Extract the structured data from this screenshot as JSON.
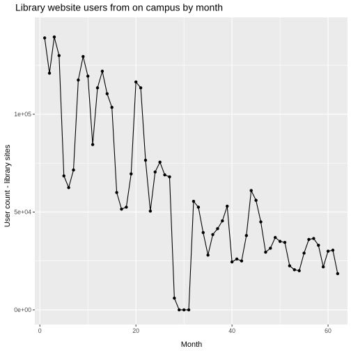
{
  "chart_data": {
    "type": "line",
    "title": "Library website users from on campus by month",
    "xlabel": "Month",
    "ylabel": "User count - library sites",
    "xlim": [
      -1.05,
      64.05
    ],
    "ylim": [
      -7500,
      149500
    ],
    "x_ticks": [
      {
        "value": 0,
        "label": "0"
      },
      {
        "value": 20,
        "label": "20"
      },
      {
        "value": 40,
        "label": "40"
      },
      {
        "value": 60,
        "label": "60"
      }
    ],
    "y_ticks": [
      {
        "value": 0,
        "label": "0e+00"
      },
      {
        "value": 50000,
        "label": "5e+04"
      },
      {
        "value": 100000,
        "label": "1e+05"
      }
    ],
    "grid": true,
    "markers": true,
    "colors": {
      "panel_background": "#ebebeb",
      "grid_major": "#ffffff",
      "line": "#000000",
      "point": "#000000",
      "tick_label": "#4d4d4d",
      "tick_mark": "#333333"
    },
    "series": [
      {
        "x": [
          1,
          2,
          3,
          4,
          5,
          6,
          7,
          8,
          9,
          10,
          11,
          12,
          13,
          14,
          15,
          16,
          17,
          18,
          19,
          20,
          21,
          22,
          23,
          24,
          25,
          26,
          27,
          28,
          29,
          30,
          31,
          32,
          33,
          34,
          35,
          36,
          37,
          38,
          39,
          40,
          41,
          42,
          43,
          44,
          45,
          46,
          47,
          48,
          49,
          50,
          51,
          52,
          53,
          54,
          55,
          56,
          57,
          58,
          59,
          60,
          61,
          62
        ],
        "values": [
          139000,
          121000,
          139500,
          130000,
          68500,
          62500,
          71500,
          117500,
          129500,
          119500,
          84500,
          113500,
          122000,
          110500,
          103500,
          60000,
          51500,
          52500,
          69500,
          116500,
          113500,
          76500,
          50500,
          70500,
          75500,
          69000,
          68000,
          6000,
          0,
          0,
          0,
          55500,
          52500,
          39500,
          28000,
          38500,
          41500,
          45500,
          53000,
          24500,
          26000,
          25000,
          38000,
          61000,
          56000,
          45000,
          29500,
          31500,
          37000,
          35000,
          34500,
          22500,
          20500,
          20000,
          29000,
          36000,
          36500,
          33000,
          22000,
          30000,
          30500,
          18500
        ]
      }
    ]
  }
}
